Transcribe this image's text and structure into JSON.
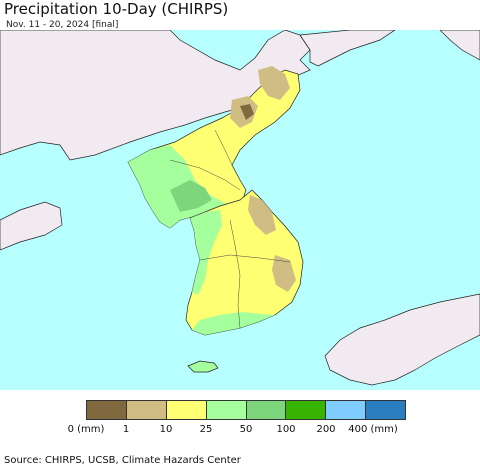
{
  "title": "Precipitation 10-Day (CHIRPS)",
  "subtitle": "Nov. 11 - 20, 2024 [final]",
  "legend": {
    "bins": [
      {
        "color": "#80683f"
      },
      {
        "color": "#d0bd83"
      },
      {
        "color": "#ffff73"
      },
      {
        "color": "#a4ff9c"
      },
      {
        "color": "#7dd67c"
      },
      {
        "color": "#37b400"
      },
      {
        "color": "#80ccff"
      },
      {
        "color": "#2a7ec0"
      }
    ],
    "tick_labels": [
      "0 (mm)",
      "1",
      "10",
      "25",
      "50",
      "100",
      "200",
      "400 (mm)"
    ]
  },
  "colors": {
    "ocean": "#b7ffff",
    "foreign_land": "#f1eaf0",
    "border": "#222222"
  },
  "source": "Source: CHIRPS, UCSB, Climate Hazards Center"
}
